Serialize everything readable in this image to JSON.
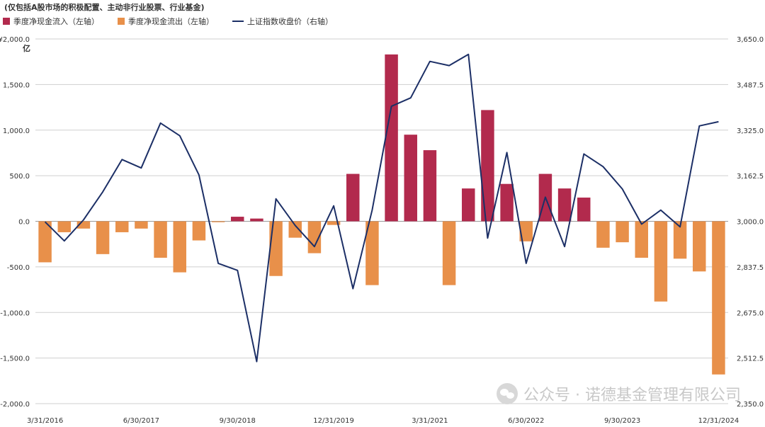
{
  "subtitle": "(仅包括A股市场的积极配置、主动非行业股票、行业基金)",
  "legend": {
    "inflow": "季度净现金流入（左轴）",
    "outflow": "季度净现金流出（左轴）",
    "index": "上证指数收盘价（右轴）"
  },
  "unit_label": "亿",
  "watermark": "公众号 · 诺德基金管理有限公司",
  "colors": {
    "inflow": "#b22a4d",
    "outflow": "#e8904a",
    "index": "#1c2f66",
    "grid": "#cfcfcf"
  },
  "chart_data": {
    "type": "bar+line",
    "quarters": [
      "Q1 2016",
      "Q2 2016",
      "Q3 2016",
      "Q4 2016",
      "Q1 2017",
      "Q2 2017",
      "Q3 2017",
      "Q4 2017",
      "Q1 2018",
      "Q2 2018",
      "Q3 2018",
      "Q4 2018",
      "Q1 2019",
      "Q2 2019",
      "Q3 2019",
      "Q4 2019",
      "Q1 2020",
      "Q2 2020",
      "Q3 2020",
      "Q4 2020",
      "Q1 2021",
      "Q2 2021",
      "Q3 2021",
      "Q4 2021",
      "Q1 2022",
      "Q2 2022",
      "Q3 2022",
      "Q4 2022",
      "Q1 2023",
      "Q2 2023",
      "Q3 2023",
      "Q4 2023",
      "Q1 2024",
      "Q2 2024",
      "Q3 2024",
      "Q4 2024"
    ],
    "x_tick_labels": [
      {
        "index": 0,
        "label": "3/31/2016"
      },
      {
        "index": 5,
        "label": "6/30/2017"
      },
      {
        "index": 10,
        "label": "9/30/2018"
      },
      {
        "index": 15,
        "label": "12/31/2019"
      },
      {
        "index": 20,
        "label": "3/31/2021"
      },
      {
        "index": 25,
        "label": "6/30/2022"
      },
      {
        "index": 30,
        "label": "9/30/2023"
      },
      {
        "index": 35,
        "label": "12/31/2024"
      }
    ],
    "net_flow": [
      -450,
      -120,
      -80,
      -360,
      -120,
      -80,
      -400,
      -560,
      -210,
      -10,
      50,
      30,
      -600,
      -180,
      -350,
      -40,
      520,
      -700,
      1830,
      950,
      780,
      -700,
      360,
      1220,
      410,
      -220,
      520,
      360,
      260,
      -290,
      -230,
      -400,
      -880,
      -410,
      -550,
      -1680
    ],
    "index_close": [
      2998,
      2930,
      3005,
      3105,
      3220,
      3190,
      3350,
      3305,
      3165,
      2850,
      2825,
      2500,
      3080,
      2985,
      2910,
      3055,
      2760,
      3040,
      3410,
      3440,
      3570,
      3555,
      3595,
      2940,
      3245,
      2850,
      3086,
      2910,
      3240,
      3195,
      3115,
      2990,
      3040,
      2980,
      3340,
      3355
    ],
    "y_left": {
      "min": -2000,
      "max": 2000,
      "ticks": [
        "-2,000.0",
        "-1,500.0",
        "-1,000.0",
        "-500.0",
        "0.0",
        "500.0",
        "1,000.0",
        "1,500.0",
        "¥2,000.0"
      ]
    },
    "y_right": {
      "ticks": [
        "2,350.0",
        "2,512.5",
        "2,675.0",
        "2,837.5",
        "3,000.0",
        "3,162.5",
        "3,325.0",
        "3,487.5",
        "3,650.0"
      ]
    },
    "grid": true,
    "legend_position": "top-left"
  }
}
